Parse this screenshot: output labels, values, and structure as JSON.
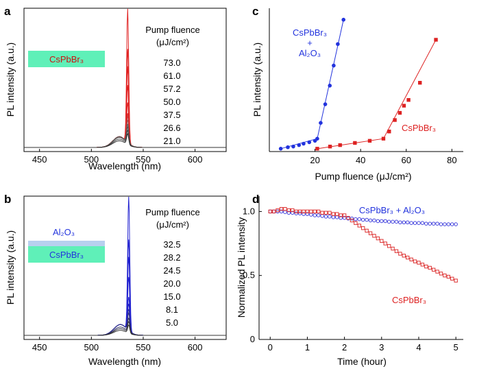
{
  "chart_data": [
    {
      "panel": "a",
      "type": "line",
      "xlabel": "Wavelength (nm)",
      "ylabel": "PL intensity (a.u.)",
      "xlim": [
        435,
        630
      ],
      "xticks": [
        450,
        500,
        550,
        600
      ],
      "sample_label": "CsPbBr₃",
      "legend_title": [
        "Pump fluence",
        "(μJ/cm²)"
      ],
      "fluences": [
        "73.0",
        "61.0",
        "57.2",
        "50.0",
        "37.5",
        "26.6",
        "21.0"
      ],
      "peak_nm": 535,
      "peak_heights": [
        1.0,
        0.7,
        0.57,
        0.43,
        0.3,
        0.22,
        0.2,
        0.17,
        0.14,
        0.12,
        0.1,
        0.08
      ],
      "curve_colors": [
        "#e02020",
        "#e02020",
        "#e02020",
        "#e02020",
        "#e02020",
        "#d83030",
        "#c04040",
        "#a05050",
        "#606060",
        "#505050",
        "#404040",
        "#303030"
      ]
    },
    {
      "panel": "b",
      "type": "line",
      "xlabel": "Wavelength (nm)",
      "ylabel": "PL intensity (a.u.)",
      "xlim": [
        435,
        630
      ],
      "xticks": [
        450,
        500,
        550,
        600
      ],
      "sample_label": "CsPbBr₃",
      "coating_label": "Al₂O₃",
      "legend_title": [
        "Pump fluence",
        "(μJ/cm²)"
      ],
      "fluences": [
        "32.5",
        "28.2",
        "24.5",
        "20.0",
        "15.0",
        "8.1",
        "5.0"
      ],
      "peak_nm": 536,
      "peak_heights": [
        1.0,
        0.68,
        0.55,
        0.4,
        0.25,
        0.2,
        0.16,
        0.13,
        0.1,
        0.08,
        0.06
      ],
      "curve_colors": [
        "#2020d0",
        "#2020d0",
        "#2020d0",
        "#2020d0",
        "#2020d0",
        "#2020c0",
        "#3030a0",
        "#303080",
        "#303060",
        "#303040",
        "#303030"
      ]
    },
    {
      "panel": "c",
      "type": "scatter",
      "xlabel": "Pump fluence (μJ/cm²)",
      "ylabel": "PL intensity (a.u.)",
      "xlim": [
        0,
        85
      ],
      "ylim": [
        0,
        1
      ],
      "xticks": [
        20,
        40,
        60,
        80
      ],
      "series": [
        {
          "name": "CsPbBr₃ + Al₂O₃",
          "label_lines": [
            "CsPbBr₃",
            "+",
            "Al₂O₃"
          ],
          "color": "#2233dd",
          "marker": "circle",
          "x": [
            5.0,
            8.1,
            10.5,
            13.0,
            15.0,
            17.5,
            20.0,
            21.0,
            22.5,
            24.5,
            26.5,
            28.2,
            30.0,
            32.5
          ],
          "y": [
            0.02,
            0.03,
            0.035,
            0.045,
            0.055,
            0.065,
            0.075,
            0.09,
            0.2,
            0.33,
            0.46,
            0.6,
            0.75,
            0.92
          ]
        },
        {
          "name": "CsPbBr₃",
          "label_lines": [
            "CsPbBr₃"
          ],
          "color": "#dd2222",
          "marker": "square",
          "x": [
            21.0,
            26.6,
            31.0,
            37.5,
            44.0,
            50.0,
            52.5,
            55.0,
            57.2,
            59.0,
            61.0,
            66.0,
            73.0
          ],
          "y": [
            0.02,
            0.035,
            0.045,
            0.06,
            0.075,
            0.09,
            0.14,
            0.22,
            0.27,
            0.32,
            0.36,
            0.48,
            0.78
          ]
        }
      ]
    },
    {
      "panel": "d",
      "type": "scatter",
      "xlabel": "Time (hour)",
      "ylabel": "Normalized PL intensity",
      "xlim": [
        -0.3,
        5.2
      ],
      "ylim": [
        0,
        1.12
      ],
      "xticks": [
        0,
        1,
        2,
        3,
        4,
        5
      ],
      "yticks": [
        0,
        0.5,
        1.0
      ],
      "ytick_labels": [
        "0",
        "0.5",
        "1.0"
      ],
      "series": [
        {
          "name": "CsPbBr₃ + Al₂O₃",
          "color": "#4444dd",
          "marker": "circle",
          "x": [
            0,
            0.1,
            0.2,
            0.3,
            0.4,
            0.5,
            0.6,
            0.7,
            0.8,
            0.9,
            1.0,
            1.1,
            1.2,
            1.3,
            1.4,
            1.5,
            1.6,
            1.7,
            1.8,
            1.9,
            2.0,
            2.1,
            2.2,
            2.3,
            2.4,
            2.5,
            2.6,
            2.7,
            2.8,
            2.9,
            3.0,
            3.1,
            3.2,
            3.3,
            3.4,
            3.5,
            3.6,
            3.7,
            3.8,
            3.9,
            4.0,
            4.1,
            4.2,
            4.3,
            4.4,
            4.5,
            4.6,
            4.7,
            4.8,
            4.9,
            5.0
          ],
          "y": [
            1.0,
            1.0,
            1.0,
            1.0,
            0.995,
            0.99,
            0.99,
            0.985,
            0.985,
            0.98,
            0.98,
            0.975,
            0.97,
            0.97,
            0.965,
            0.96,
            0.96,
            0.955,
            0.955,
            0.95,
            0.95,
            0.945,
            0.945,
            0.94,
            0.94,
            0.935,
            0.935,
            0.93,
            0.93,
            0.925,
            0.925,
            0.925,
            0.92,
            0.92,
            0.92,
            0.915,
            0.915,
            0.915,
            0.91,
            0.91,
            0.91,
            0.91,
            0.905,
            0.905,
            0.905,
            0.905,
            0.9,
            0.9,
            0.9,
            0.9,
            0.9
          ]
        },
        {
          "name": "CsPbBr₃",
          "color": "#dd3333",
          "marker": "square",
          "x": [
            0,
            0.1,
            0.2,
            0.3,
            0.4,
            0.5,
            0.6,
            0.7,
            0.8,
            0.9,
            1.0,
            1.1,
            1.2,
            1.3,
            1.4,
            1.5,
            1.6,
            1.7,
            1.8,
            1.9,
            2.0,
            2.1,
            2.2,
            2.3,
            2.4,
            2.5,
            2.6,
            2.7,
            2.8,
            2.9,
            3.0,
            3.1,
            3.2,
            3.3,
            3.4,
            3.5,
            3.6,
            3.7,
            3.8,
            3.9,
            4.0,
            4.1,
            4.2,
            4.3,
            4.4,
            4.5,
            4.6,
            4.7,
            4.8,
            4.9,
            5.0
          ],
          "y": [
            1.0,
            1.0,
            1.01,
            1.02,
            1.02,
            1.01,
            1.01,
            1.0,
            1.0,
            1.0,
            1.0,
            1.0,
            1.0,
            1.0,
            0.99,
            0.99,
            0.99,
            0.98,
            0.98,
            0.97,
            0.97,
            0.95,
            0.93,
            0.91,
            0.89,
            0.87,
            0.85,
            0.83,
            0.81,
            0.79,
            0.77,
            0.75,
            0.73,
            0.71,
            0.69,
            0.67,
            0.655,
            0.64,
            0.625,
            0.61,
            0.6,
            0.585,
            0.57,
            0.56,
            0.545,
            0.53,
            0.515,
            0.5,
            0.49,
            0.475,
            0.46
          ]
        }
      ]
    }
  ]
}
